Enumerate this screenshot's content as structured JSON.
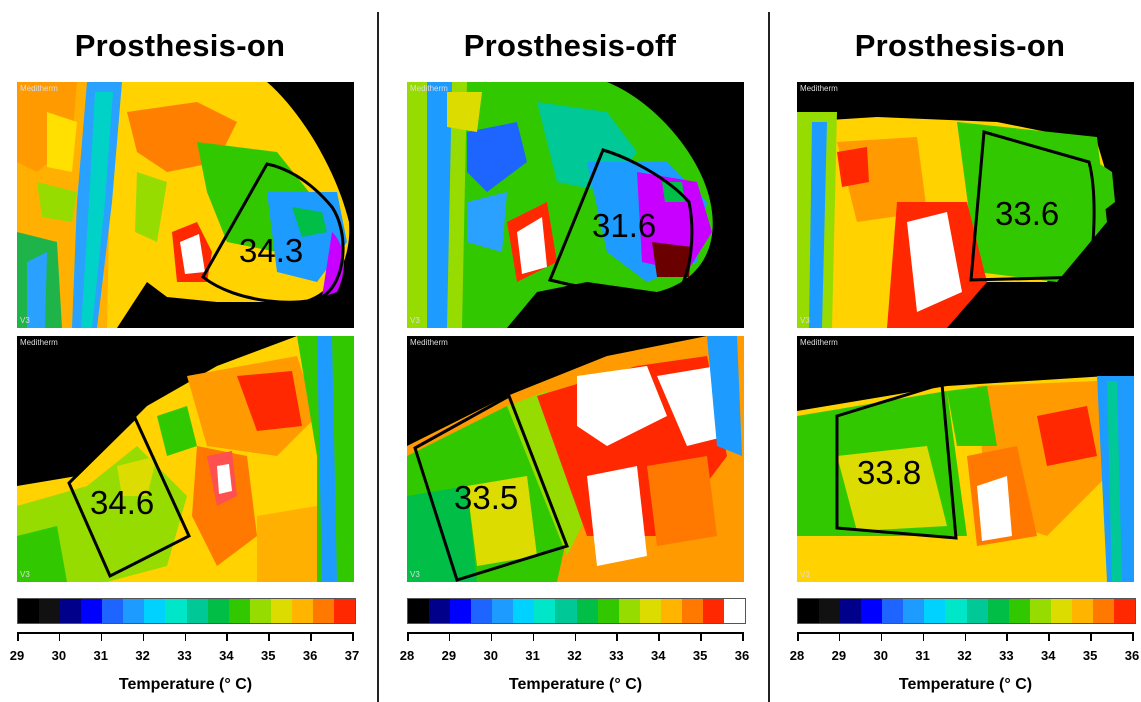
{
  "panels": [
    {
      "title": "Prosthesis-on",
      "top_image": {
        "brand": "Meditherm",
        "camera": "V3",
        "reading": "34.3"
      },
      "bottom_image": {
        "brand": "Meditherm",
        "camera": "V3",
        "reading": "34.6"
      },
      "scale": {
        "colors": [
          "#000000",
          "#111111",
          "#00008b",
          "#0000ff",
          "#1e64ff",
          "#1e9bff",
          "#00d2ff",
          "#00e6c8",
          "#00c896",
          "#00be46",
          "#32c800",
          "#96dc00",
          "#dcdc00",
          "#ffb400",
          "#ff7800",
          "#ff2800"
        ],
        "ticks": [
          "29",
          "30",
          "31",
          "32",
          "33",
          "34",
          "35",
          "36",
          "37"
        ],
        "label": "Temperature (° C)"
      }
    },
    {
      "title": "Prosthesis-off",
      "top_image": {
        "brand": "Meditherm",
        "camera": "V3",
        "reading": "31.6"
      },
      "bottom_image": {
        "brand": "Meditherm",
        "camera": "V3",
        "reading": "33.5"
      },
      "scale": {
        "colors": [
          "#000000",
          "#00008b",
          "#0000ff",
          "#1e64ff",
          "#1e9bff",
          "#00d2ff",
          "#00e6c8",
          "#00c896",
          "#00be46",
          "#32c800",
          "#96dc00",
          "#dcdc00",
          "#ffb400",
          "#ff7800",
          "#ff2800",
          "#ffffff"
        ],
        "ticks": [
          "28",
          "29",
          "30",
          "31",
          "32",
          "33",
          "34",
          "35",
          "36"
        ],
        "label": "Temperature (° C)"
      }
    },
    {
      "title": "Prosthesis-on",
      "top_image": {
        "brand": "Meditherm",
        "camera": "V3",
        "reading": "33.6"
      },
      "bottom_image": {
        "brand": "Meditherm",
        "camera": "V3",
        "reading": "33.8"
      },
      "scale": {
        "colors": [
          "#000000",
          "#111111",
          "#00008b",
          "#0000ff",
          "#1e64ff",
          "#1e9bff",
          "#00d2ff",
          "#00e6c8",
          "#00c896",
          "#00be46",
          "#32c800",
          "#96dc00",
          "#dcdc00",
          "#ffb400",
          "#ff7800",
          "#ff2800"
        ],
        "ticks": [
          "28",
          "29",
          "30",
          "31",
          "32",
          "33",
          "34",
          "35",
          "36"
        ],
        "label": "Temperature (° C)"
      }
    }
  ]
}
